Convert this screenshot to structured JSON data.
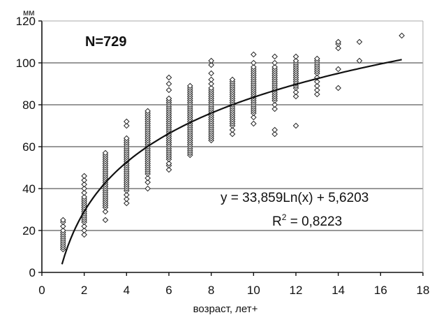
{
  "chart_data": {
    "type": "scatter",
    "title": "",
    "ylabel": "мм",
    "xlabel": "возраст, лет+",
    "n_label": "N=729",
    "xlim": [
      0,
      18
    ],
    "ylim": [
      0,
      120
    ],
    "x_ticks": [
      0,
      2,
      4,
      6,
      8,
      10,
      12,
      14,
      16,
      18
    ],
    "y_ticks": [
      0,
      20,
      40,
      60,
      80,
      100,
      120
    ],
    "grid": "horizontal",
    "marker": "open-diamond",
    "point_groups": [
      {
        "x": 1,
        "y": [
          11,
          12,
          13,
          14,
          15,
          16,
          17,
          18,
          19,
          20,
          22,
          24,
          25
        ]
      },
      {
        "x": 2,
        "y": [
          18,
          20,
          22,
          24,
          25,
          26,
          27,
          28,
          29,
          30,
          31,
          32,
          33,
          34,
          35,
          36,
          38,
          40,
          42,
          44,
          46
        ]
      },
      {
        "x": 3,
        "y": [
          25,
          29,
          31,
          32,
          33,
          34,
          35,
          36,
          37,
          38,
          39,
          40,
          41,
          42,
          43,
          44,
          45,
          46,
          47,
          48,
          49,
          50,
          51,
          52,
          53,
          54,
          55,
          56,
          57
        ]
      },
      {
        "x": 4,
        "y": [
          33,
          35,
          37,
          39,
          40,
          41,
          42,
          43,
          44,
          45,
          46,
          47,
          48,
          49,
          50,
          51,
          52,
          53,
          54,
          55,
          56,
          57,
          58,
          59,
          60,
          61,
          62,
          63,
          64,
          70,
          72
        ]
      },
      {
        "x": 5,
        "y": [
          40,
          43,
          45,
          47,
          48,
          49,
          50,
          51,
          52,
          53,
          54,
          55,
          56,
          57,
          58,
          59,
          60,
          61,
          62,
          63,
          64,
          65,
          66,
          67,
          68,
          69,
          70,
          71,
          72,
          73,
          74,
          75,
          76,
          77
        ]
      },
      {
        "x": 6,
        "y": [
          49,
          51,
          52,
          54,
          55,
          56,
          57,
          58,
          59,
          60,
          61,
          62,
          63,
          64,
          65,
          66,
          67,
          68,
          69,
          70,
          71,
          72,
          73,
          74,
          75,
          76,
          77,
          78,
          79,
          80,
          81,
          82,
          83,
          87,
          90,
          93
        ]
      },
      {
        "x": 7,
        "y": [
          56,
          57,
          58,
          59,
          60,
          61,
          62,
          63,
          64,
          65,
          66,
          67,
          68,
          69,
          70,
          71,
          72,
          73,
          74,
          75,
          76,
          77,
          78,
          79,
          80,
          81,
          82,
          83,
          84,
          85,
          86,
          87,
          88,
          89
        ]
      },
      {
        "x": 8,
        "y": [
          63,
          64,
          65,
          66,
          67,
          68,
          69,
          70,
          71,
          72,
          73,
          74,
          75,
          76,
          77,
          78,
          79,
          80,
          81,
          82,
          83,
          84,
          85,
          86,
          87,
          88,
          90,
          92,
          95,
          99,
          101
        ]
      },
      {
        "x": 9,
        "y": [
          66,
          68,
          70,
          71,
          72,
          73,
          74,
          75,
          76,
          77,
          78,
          79,
          80,
          81,
          82,
          83,
          84,
          85,
          86,
          87,
          88,
          89,
          90,
          91,
          92
        ]
      },
      {
        "x": 10,
        "y": [
          71,
          74,
          76,
          77,
          78,
          79,
          80,
          81,
          82,
          83,
          84,
          85,
          86,
          87,
          88,
          89,
          90,
          91,
          92,
          93,
          94,
          95,
          96,
          97,
          98,
          100,
          104
        ]
      },
      {
        "x": 11,
        "y": [
          66,
          68,
          78,
          80,
          82,
          83,
          84,
          85,
          86,
          87,
          88,
          89,
          90,
          91,
          92,
          93,
          94,
          95,
          96,
          97,
          98,
          100,
          103
        ]
      },
      {
        "x": 12,
        "y": [
          70,
          84,
          86,
          88,
          89,
          90,
          91,
          92,
          93,
          94,
          95,
          96,
          97,
          98,
          99,
          100,
          101,
          103
        ]
      },
      {
        "x": 13,
        "y": [
          85,
          87,
          89,
          91,
          93,
          95,
          96,
          97,
          98,
          99,
          100,
          101,
          102
        ]
      },
      {
        "x": 14,
        "y": [
          88,
          97,
          107,
          109,
          110
        ]
      },
      {
        "x": 15,
        "y": [
          101,
          110
        ]
      },
      {
        "x": 17,
        "y": [
          113
        ]
      }
    ],
    "trendline": {
      "type": "logarithmic",
      "a": 33.859,
      "b": 5.6203,
      "x_start": 0.95,
      "x_end": 17,
      "equation_text": "y = 33,859Ln(x) + 5,6203",
      "r2_prefix": "R",
      "r2_exponent": "2",
      "r2_value": " = 0,8223"
    }
  }
}
